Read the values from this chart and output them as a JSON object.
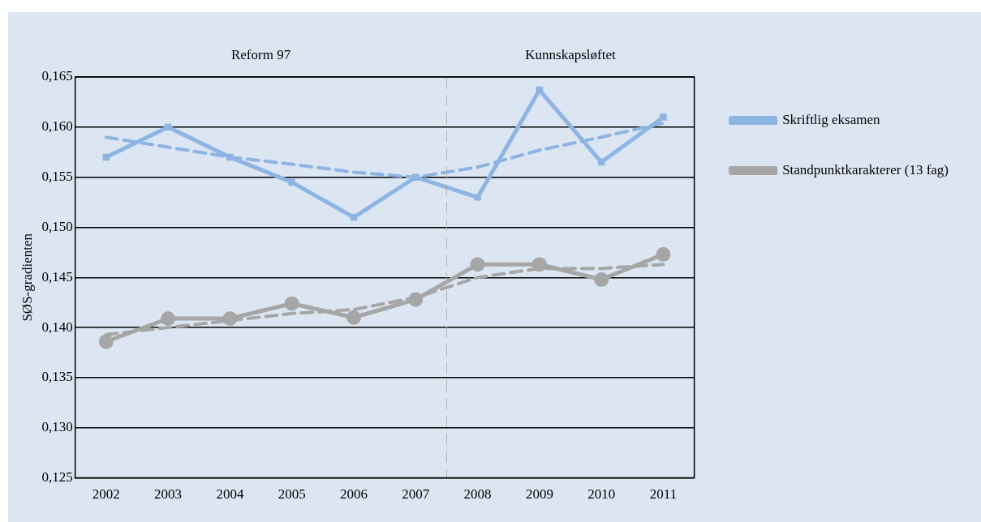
{
  "chart_data": {
    "type": "line",
    "ylabel": "SØS-gradienten",
    "x": [
      2002,
      2003,
      2004,
      2005,
      2006,
      2007,
      2008,
      2009,
      2010,
      2011
    ],
    "xlim": [
      2001.5,
      2011.5
    ],
    "xticks": [
      2002,
      2003,
      2004,
      2005,
      2006,
      2007,
      2008,
      2009,
      2010,
      2011
    ],
    "ylim": [
      0.125,
      0.165
    ],
    "yticks": [
      {
        "value": 0.125,
        "label": "0,125"
      },
      {
        "value": 0.13,
        "label": "0,130"
      },
      {
        "value": 0.135,
        "label": "0,135"
      },
      {
        "value": 0.14,
        "label": "0,140"
      },
      {
        "value": 0.145,
        "label": "0,145"
      },
      {
        "value": 0.15,
        "label": "0,150"
      },
      {
        "value": 0.155,
        "label": "0,155"
      },
      {
        "value": 0.16,
        "label": "0,160"
      },
      {
        "value": 0.165,
        "label": "0,165"
      }
    ],
    "grid": "y",
    "legend": "right",
    "series": [
      {
        "name": "Skriftlig eksamen",
        "color": "#8eb4e3",
        "marker": "square",
        "values": [
          0.157,
          0.16,
          0.157,
          0.1545,
          0.151,
          0.155,
          0.153,
          0.1637,
          0.1565,
          0.161
        ]
      },
      {
        "name": "Standpunktkarakterer (13 fag)",
        "color": "#a6a6a6",
        "marker": "circle",
        "values": [
          0.1386,
          0.1409,
          0.1409,
          0.1424,
          0.141,
          0.1428,
          0.1463,
          0.1463,
          0.1448,
          0.1473
        ]
      },
      {
        "color": "#8eb4e3",
        "marker": "none",
        "line_style": "dashed",
        "values": [
          0.159,
          0.158,
          0.157,
          0.1563,
          0.1555,
          0.155,
          0.156,
          0.1577,
          0.159,
          0.1604
        ]
      },
      {
        "color": "#a6a6a6",
        "marker": "none",
        "line_style": "dashed",
        "values": [
          0.1393,
          0.14,
          0.1407,
          0.1414,
          0.1418,
          0.143,
          0.145,
          0.1459,
          0.1459,
          0.1463
        ]
      }
    ],
    "ref_lines": [
      {
        "axis": "x",
        "value": 2007.5,
        "color": "#b0b0b0",
        "line_style": "dashed"
      }
    ],
    "annotations": [
      "Reform 97",
      "Kunnskapsløftet"
    ]
  }
}
